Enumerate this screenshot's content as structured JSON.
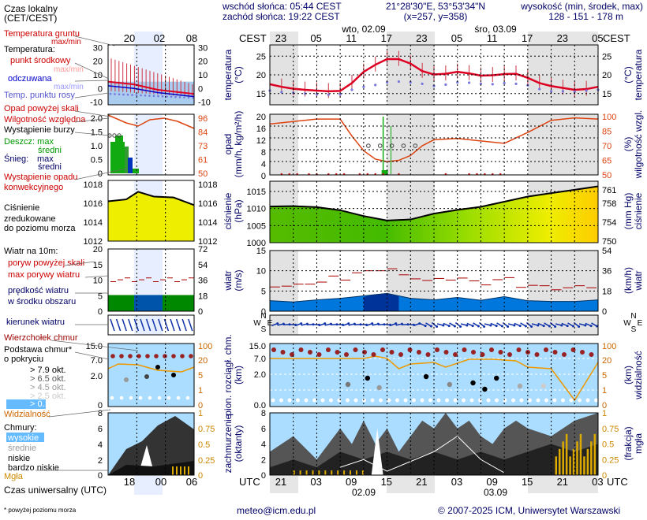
{
  "header": {
    "time_zone": "Czas lokalny\n(CET/CEST)",
    "sunrise": "wschód słońca: 05:44 CEST",
    "sunset": "zachód słońca: 19:22 CEST",
    "coords": "21°28'30\"E, 53°53'34\"N",
    "grid": "(x=257, y=358)",
    "elevation_title": "wysokość (min, środek, max)",
    "elevation_values": "128 - 151 - 178 m",
    "days": [
      "wto, 02.09",
      "śro, 03.09"
    ],
    "cest": "CEST",
    "local_hours": [
      "23",
      "05",
      "11",
      "17",
      "23",
      "05",
      "11",
      "17",
      "23",
      "05"
    ],
    "legend_hours": [
      "20",
      "02",
      "08"
    ]
  },
  "footer": {
    "utc_label": "UTC",
    "utc_hours": [
      "21",
      "03",
      "09",
      "15",
      "21",
      "03",
      "09",
      "15",
      "21",
      "03"
    ],
    "utc_days": [
      "02.09",
      "03.09"
    ],
    "legend_utc_hours": [
      "18",
      "00",
      "06"
    ],
    "legend_utc_title": "Czas uniwersalny (UTC)",
    "footnote": "* powyżej poziomu morza",
    "email": "meteo@icm.edu.pl",
    "copyright": "© 2007-2025 ICM, Uniwersytet Warszawski"
  },
  "legend": {
    "temp": [
      "Temperatura gruntu",
      "max/min",
      "Temperatura:",
      "punkt środkowy",
      "max/min",
      "odczuwana",
      "max/min",
      "Temp. punktu rosy"
    ],
    "precip": [
      "Opad powyżej skali",
      "Wilgotność względna",
      "Wystąpienie burzy",
      "Deszcz: max",
      "średni",
      "Śnieg:",
      "max",
      "średni",
      "Wystąpienie opadu",
      "konwekcyjnego"
    ],
    "pressure": [
      "Ciśnienie",
      "zredukowane",
      "do poziomu morza"
    ],
    "wind": [
      "Wiatr na 10m:",
      "poryw powyżej skali",
      "max porywy wiatru",
      "prędkość wiatru",
      "w środku obszaru"
    ],
    "wind_dir": [
      "kierunek wiatru"
    ],
    "cloudbase": [
      "Wierzchołek chmur",
      "Podstawa chmur*",
      "o pokryciu",
      "> 7.9 okt.",
      "> 6.5 okt.",
      "> 4.5 okt.",
      "> 2.5 okt.",
      "> 0.1 okt.",
      "Widzialność"
    ],
    "clouds": [
      "Chmury:",
      "wysokie",
      "średnie",
      "niskie",
      "bardzo niskie",
      "Mgła"
    ]
  },
  "axes": {
    "temperature": {
      "left": "temperatura\n(°C)",
      "right": "(°C)\ntemperatura",
      "ticks": [
        "25",
        "20",
        "15"
      ],
      "legend_ticks": [
        "30",
        "20",
        "10",
        "0",
        "-10"
      ]
    },
    "precip": {
      "left": "opad\n(mm/h, kg/m²/h)",
      "right": "(%)\nwilgotność wzgl.",
      "ticks_left": [
        "20",
        "16",
        "12",
        "8",
        "4",
        "0"
      ],
      "ticks_right": [
        "100",
        "85",
        "70",
        "65",
        "50"
      ],
      "legend_ticks_left": [
        "2.0",
        "1.5",
        "1.0",
        "0.5",
        "0"
      ],
      "legend_ticks_right": [
        "96",
        "84",
        "73",
        "61",
        "50"
      ]
    },
    "pressure": {
      "left": "ciśnienie\n(hPa)",
      "right": "(mm Hg)\nciśnienie",
      "ticks_left": [
        "1015",
        "1010",
        "1005",
        "1000"
      ],
      "ticks_right": [
        "761",
        "758",
        "754",
        "750"
      ],
      "legend_ticks": [
        "1018",
        "1016",
        "1014",
        "1012"
      ]
    },
    "wind": {
      "left": "wiatr\n(m/s)",
      "right": "(km/h)\nwiatr",
      "ticks_left": [
        "15",
        "10",
        "5",
        "0"
      ],
      "ticks_right": [
        "54",
        "36",
        "18",
        "0"
      ],
      "legend_ticks_left": [
        "20",
        "15",
        "10",
        "5",
        "0"
      ],
      "legend_ticks_right": [
        "72",
        "54",
        "36",
        "18",
        "0"
      ]
    },
    "compass": [
      "N",
      "W",
      "E",
      "S"
    ],
    "cloudbase": {
      "left": "pion. rozciągł. chm.\n(km)",
      "right": "(km)\nwidzialność",
      "ticks_left": [
        "15.0",
        "7.0",
        "2.0",
        "0.0"
      ],
      "ticks_right": [
        "100",
        "20",
        "5",
        "1",
        "0"
      ]
    },
    "clouds": {
      "left": "zachmurzenie\n(oktanty)",
      "right": "(frakcja)\nmgła",
      "ticks_left": [
        "8",
        "6",
        "4",
        "2",
        "0"
      ],
      "ticks_right": [
        "1",
        "0.75",
        "0.5",
        "0.25",
        "0"
      ]
    }
  },
  "colors": {
    "temp": "#dd0022",
    "apparent": "#0000cc",
    "dew": "#7777dd",
    "humidity": "#dd4411",
    "rain": "#11aa11",
    "pressure_fill": "#eeee00",
    "wind_fill": "#0066dd",
    "wind_gust": "#aa0000",
    "clouds_bg": "#aaddff",
    "fog": "#ddaa00"
  },
  "chart_data": [
    {
      "type": "line",
      "title": "temperatura",
      "x": [
        0,
        3,
        6,
        9,
        12,
        15,
        18,
        21,
        24,
        27,
        30,
        33,
        36,
        39,
        42,
        45,
        48,
        51,
        54,
        57,
        60,
        63,
        66,
        69,
        72,
        75,
        78,
        81,
        84
      ],
      "series": [
        {
          "name": "punkt środkowy",
          "values": [
            17.5,
            16.8,
            16.3,
            16.0,
            15.8,
            15.6,
            15.7,
            17.8,
            20.8,
            22.7,
            24.2,
            24.2,
            23.0,
            21.0,
            20.1,
            20.3,
            20.8,
            20.4,
            19.8,
            19.9,
            20.2,
            20.3,
            19.2,
            17.8,
            17.0,
            16.5,
            16.0,
            16.2,
            16.8
          ]
        },
        {
          "name": "Temp. punktu rosy",
          "values": [
            15.8,
            15.4,
            15.2,
            15.0,
            14.8,
            14.7,
            14.8,
            16.0,
            16.8,
            17.3,
            18.0,
            18.2,
            18.0,
            17.6,
            17.0,
            17.4,
            18.0,
            17.9,
            17.6,
            17.5,
            17.8,
            17.6,
            17.2,
            16.2,
            15.6,
            15.6,
            15.5,
            15.8,
            16.0
          ]
        }
      ],
      "ylim": [
        12,
        28
      ]
    },
    {
      "type": "line",
      "title": "wilgotność wzgl.",
      "x": [
        0,
        6,
        12,
        18,
        21,
        24,
        27,
        30,
        33,
        36,
        39,
        42,
        48,
        54,
        60,
        66,
        72,
        78,
        84
      ],
      "series": [
        {
          "name": "Wilgotność względna",
          "values": [
            92,
            94,
            96,
            96,
            82,
            70,
            63,
            61,
            62,
            66,
            74,
            79,
            80,
            78,
            76,
            85,
            95,
            97,
            96
          ]
        }
      ],
      "ylim": [
        50,
        100
      ]
    },
    {
      "type": "area",
      "title": "ciśnienie",
      "x": [
        0,
        6,
        12,
        18,
        24,
        30,
        36,
        42,
        48,
        54,
        60,
        66,
        72,
        78,
        84
      ],
      "series": [
        {
          "name": "Ciśnienie zredukowane",
          "values": [
            1010.6,
            1010.7,
            1010.4,
            1009.5,
            1007.8,
            1006.5,
            1006.8,
            1008.5,
            1009.6,
            1010.5,
            1012.0,
            1013.5,
            1014.5,
            1015.5,
            1016.5
          ]
        }
      ],
      "ylim": [
        1000,
        1018
      ]
    },
    {
      "type": "area",
      "title": "wiatr",
      "x": [
        0,
        6,
        12,
        18,
        24,
        30,
        36,
        42,
        48,
        54,
        60,
        66,
        72,
        78,
        84
      ],
      "series": [
        {
          "name": "prędkość wiatru",
          "values": [
            2.6,
            2.3,
            2.8,
            3.2,
            3.8,
            4.4,
            3.2,
            2.8,
            3.4,
            2.7,
            3.6,
            2.6,
            2.4,
            2.4,
            2.8
          ]
        },
        {
          "name": "max porywy wiatru",
          "values": [
            6.5,
            6.2,
            7.2,
            8.2,
            9.5,
            10.5,
            8.5,
            7.6,
            8.2,
            7.0,
            7.8,
            6.4,
            5.8,
            5.8,
            6.3
          ]
        }
      ],
      "ylim": [
        0,
        15
      ]
    }
  ]
}
